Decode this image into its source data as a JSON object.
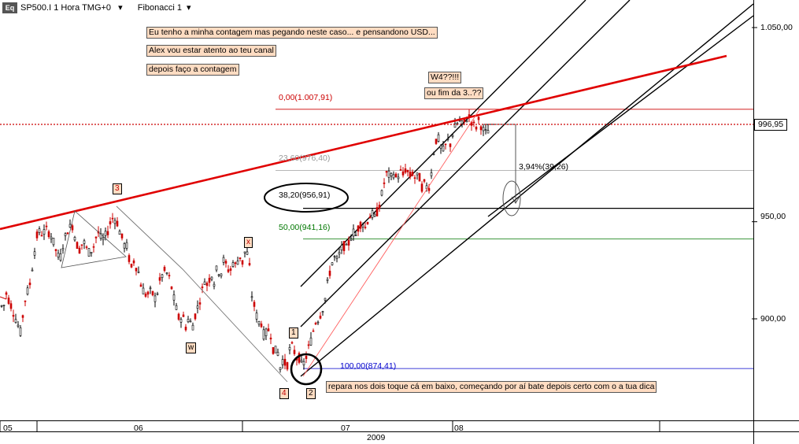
{
  "header": {
    "symbol_label": "SP500.I 1 Hora TMG+0",
    "study_label": "Fibonacci 1",
    "logo_text": "Eq"
  },
  "notes": [
    "Eu tenho a minha contagem mas pegando neste caso... e pensandono USD...",
    "Alex vou estar atento ao teu canal",
    "depois faço a contagem"
  ],
  "callouts": {
    "w4": "W4??!!!",
    "fim": "ou fim da 3..??",
    "percent": "3,94%(39,26)",
    "bottom": "repara nos dois toque cá em baixo, começando por aí bate depois certo com o a tua dica"
  },
  "wave_labels": {
    "w3": "3",
    "wx": "x",
    "ww": "w",
    "w1": "1",
    "w4": "4",
    "w2": "2"
  },
  "current_price": "996,95",
  "colors": {
    "trendline": "#e00000",
    "bull": "#000000",
    "bear": "#cc0000",
    "fib_0": "#cc0000",
    "fib_236": "#999999",
    "fib_382": "#000000",
    "fib_50": "#007700",
    "fib_100": "#0000cc"
  },
  "chart_data": {
    "type": "candlestick",
    "x_ticks": [
      "05",
      "06",
      "07",
      "08"
    ],
    "x_year": "2009",
    "y_ticks": [
      "1.050,00",
      "950,00",
      "900,00"
    ],
    "ylim": [
      846,
      1064
    ],
    "fib_levels": [
      {
        "label": "0,00(1.007,91)",
        "value": 1007.91,
        "color": "#cc0000"
      },
      {
        "label": "23,60(976,40)",
        "value": 976.4,
        "color": "#999999"
      },
      {
        "label": "38,20(956,91)",
        "value": 956.91,
        "color": "#000000"
      },
      {
        "label": "50,00(941,16)",
        "value": 941.16,
        "color": "#007700"
      },
      {
        "label": "100,00(874,41)",
        "value": 874.41,
        "color": "#0000cc"
      }
    ],
    "last_price": 996.95,
    "path": [
      [
        0,
        908
      ],
      [
        4,
        905
      ],
      [
        8,
        913
      ],
      [
        14,
        907
      ],
      [
        20,
        900
      ],
      [
        26,
        893
      ],
      [
        32,
        910
      ],
      [
        38,
        918
      ],
      [
        44,
        935
      ],
      [
        48,
        945
      ],
      [
        54,
        944
      ],
      [
        60,
        946
      ],
      [
        66,
        942
      ],
      [
        72,
        934
      ],
      [
        76,
        930
      ],
      [
        80,
        938
      ],
      [
        86,
        946
      ],
      [
        92,
        948
      ],
      [
        96,
        941
      ],
      [
        100,
        935
      ],
      [
        106,
        940
      ],
      [
        112,
        934
      ],
      [
        118,
        936
      ],
      [
        124,
        945
      ],
      [
        130,
        940
      ],
      [
        136,
        944
      ],
      [
        142,
        952
      ],
      [
        148,
        951
      ],
      [
        152,
        945
      ],
      [
        158,
        938
      ],
      [
        162,
        937
      ],
      [
        166,
        925
      ],
      [
        170,
        930
      ],
      [
        176,
        924
      ],
      [
        180,
        916
      ],
      [
        186,
        912
      ],
      [
        192,
        914
      ],
      [
        198,
        910
      ],
      [
        204,
        921
      ],
      [
        210,
        925
      ],
      [
        216,
        920
      ],
      [
        220,
        912
      ],
      [
        224,
        905
      ],
      [
        228,
        899
      ],
      [
        232,
        902
      ],
      [
        236,
        896
      ],
      [
        240,
        901
      ],
      [
        244,
        895
      ],
      [
        248,
        902
      ],
      [
        252,
        907
      ],
      [
        256,
        913
      ],
      [
        260,
        920
      ],
      [
        264,
        917
      ],
      [
        268,
        924
      ],
      [
        272,
        919
      ],
      [
        276,
        927
      ],
      [
        280,
        922
      ],
      [
        284,
        930
      ],
      [
        288,
        927
      ],
      [
        292,
        924
      ],
      [
        296,
        929
      ],
      [
        300,
        927
      ],
      [
        304,
        933
      ],
      [
        308,
        929
      ],
      [
        312,
        936
      ],
      [
        316,
        931
      ],
      [
        320,
        912
      ],
      [
        324,
        905
      ],
      [
        328,
        898
      ],
      [
        332,
        898
      ],
      [
        336,
        890
      ],
      [
        340,
        895
      ],
      [
        344,
        892
      ],
      [
        348,
        882
      ],
      [
        352,
        885
      ],
      [
        356,
        875
      ],
      [
        360,
        880
      ],
      [
        364,
        874
      ],
      [
        368,
        884
      ],
      [
        372,
        886
      ],
      [
        376,
        880
      ],
      [
        380,
        880
      ],
      [
        384,
        875
      ],
      [
        388,
        879
      ],
      [
        392,
        885
      ],
      [
        396,
        890
      ],
      [
        400,
        898
      ],
      [
        404,
        900
      ],
      [
        408,
        903
      ],
      [
        412,
        908
      ],
      [
        416,
        918
      ],
      [
        420,
        926
      ],
      [
        424,
        932
      ],
      [
        428,
        930
      ],
      [
        432,
        934
      ],
      [
        436,
        938
      ],
      [
        440,
        936
      ],
      [
        444,
        940
      ],
      [
        448,
        945
      ],
      [
        452,
        943
      ],
      [
        456,
        948
      ],
      [
        460,
        950
      ],
      [
        464,
        947
      ],
      [
        468,
        952
      ],
      [
        472,
        954
      ],
      [
        476,
        952
      ],
      [
        480,
        956
      ],
      [
        484,
        962
      ],
      [
        488,
        970
      ],
      [
        492,
        976
      ],
      [
        496,
        972
      ],
      [
        500,
        975
      ],
      [
        504,
        972
      ],
      [
        508,
        976
      ],
      [
        512,
        974
      ],
      [
        516,
        978
      ],
      [
        520,
        973
      ],
      [
        524,
        975
      ],
      [
        528,
        972
      ],
      [
        532,
        974
      ],
      [
        536,
        968
      ],
      [
        540,
        970
      ],
      [
        544,
        966
      ],
      [
        548,
        975
      ],
      [
        552,
        990
      ],
      [
        556,
        994
      ],
      [
        560,
        988
      ],
      [
        564,
        986
      ],
      [
        568,
        992
      ],
      [
        572,
        990
      ],
      [
        576,
        997
      ],
      [
        580,
        1000
      ],
      [
        584,
        1002
      ],
      [
        588,
        999
      ],
      [
        592,
        1003
      ],
      [
        596,
        1004
      ],
      [
        600,
        1001
      ],
      [
        604,
        998
      ],
      [
        608,
        1002
      ],
      [
        612,
        999
      ],
      [
        616,
        995
      ],
      [
        620,
        997
      ]
    ]
  }
}
